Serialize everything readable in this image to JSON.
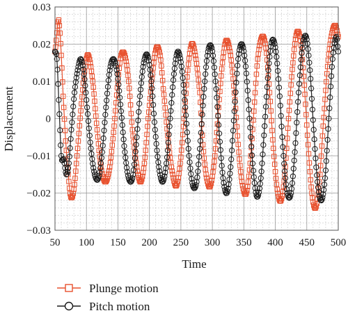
{
  "chart_data": {
    "type": "line",
    "xlabel": "Time",
    "ylabel": "Displacement",
    "xlim": [
      50,
      500
    ],
    "ylim": [
      -0.03,
      0.03
    ],
    "x_ticks": [
      50,
      100,
      150,
      200,
      250,
      300,
      350,
      400,
      450,
      500
    ],
    "x_tick_labels": [
      "50",
      "100",
      "150",
      "200",
      "250",
      "300",
      "350",
      "400",
      "450",
      "500"
    ],
    "y_ticks": [
      -0.03,
      -0.02,
      -0.01,
      0,
      0.01,
      0.02,
      0.03
    ],
    "y_tick_labels": [
      "−0.03",
      "−0.02",
      "−0.01",
      "0",
      "0.01",
      "0.02",
      "0.03"
    ],
    "grid": true,
    "minor_grid": true,
    "legend_position": "bottom-left, below plot",
    "series": [
      {
        "name": "Plunge motion",
        "color": "#e8512e",
        "marker": "square",
        "x": [
          50,
          55,
          57,
          60,
          63,
          67,
          71,
          75,
          80,
          86,
          92,
          98,
          103,
          110,
          117,
          123,
          130,
          137,
          144,
          150,
          155,
          161,
          167,
          173,
          180,
          186,
          192,
          198,
          205,
          211,
          217,
          222,
          230,
          237,
          243,
          249,
          255,
          261,
          267,
          273,
          280,
          285,
          291,
          297,
          304,
          310,
          316,
          322,
          329,
          336,
          342,
          348,
          354,
          360,
          366,
          372,
          379,
          385,
          391,
          397,
          403,
          409,
          415,
          421,
          428,
          434,
          440,
          446,
          452,
          458,
          464,
          470,
          476,
          483,
          490,
          496,
          500
        ],
        "values": [
          0.018,
          0.026,
          0.025,
          0.017,
          0.006,
          -0.006,
          -0.015,
          -0.021,
          -0.019,
          -0.008,
          0.004,
          0.014,
          0.017,
          0.01,
          -0.003,
          -0.013,
          -0.017,
          -0.013,
          -0.002,
          0.01,
          0.017,
          0.017,
          0.01,
          -0.003,
          -0.013,
          -0.017,
          -0.012,
          0.0,
          0.012,
          0.019,
          0.017,
          0.008,
          -0.006,
          -0.015,
          -0.018,
          -0.012,
          0.0,
          0.013,
          0.02,
          0.017,
          0.007,
          -0.007,
          -0.016,
          -0.018,
          -0.01,
          0.003,
          0.015,
          0.021,
          0.017,
          0.005,
          -0.009,
          -0.018,
          -0.02,
          -0.012,
          0.002,
          0.016,
          0.022,
          0.019,
          0.007,
          -0.008,
          -0.019,
          -0.022,
          -0.015,
          0.0,
          0.015,
          0.023,
          0.021,
          0.009,
          -0.007,
          -0.02,
          -0.024,
          -0.017,
          -0.002,
          0.014,
          0.023,
          0.025,
          0.022
        ]
      },
      {
        "name": "Pitch motion",
        "color": "#1a1a1a",
        "marker": "circle",
        "x": [
          50,
          53,
          56,
          60,
          64,
          68,
          72,
          76,
          81,
          86,
          91,
          96,
          101,
          107,
          113,
          119,
          125,
          131,
          137,
          143,
          149,
          155,
          161,
          167,
          173,
          179,
          185,
          191,
          197,
          203,
          209,
          215,
          221,
          227,
          233,
          239,
          245,
          251,
          257,
          263,
          269,
          275,
          281,
          287,
          293,
          299,
          305,
          311,
          317,
          323,
          329,
          335,
          341,
          347,
          353,
          359,
          365,
          371,
          377,
          383,
          389,
          395,
          401,
          407,
          413,
          419,
          425,
          431,
          437,
          443,
          449,
          455,
          461,
          467,
          473,
          479,
          485,
          491,
          497,
          500
        ],
        "values": [
          0.018,
          0.016,
          0.005,
          -0.01,
          -0.011,
          -0.015,
          -0.012,
          -0.003,
          0.007,
          0.013,
          0.016,
          0.012,
          0.003,
          -0.008,
          -0.015,
          -0.016,
          -0.009,
          0.003,
          0.013,
          0.016,
          0.012,
          0.002,
          -0.009,
          -0.016,
          -0.016,
          -0.007,
          0.006,
          0.015,
          0.017,
          0.01,
          -0.003,
          -0.013,
          -0.017,
          -0.012,
          0.0,
          0.012,
          0.018,
          0.014,
          0.003,
          -0.01,
          -0.018,
          -0.017,
          -0.006,
          0.008,
          0.018,
          0.019,
          0.01,
          -0.004,
          -0.016,
          -0.02,
          -0.013,
          0.002,
          0.016,
          0.02,
          0.014,
          0.0,
          -0.014,
          -0.021,
          -0.016,
          -0.002,
          0.013,
          0.021,
          0.018,
          0.006,
          -0.01,
          -0.02,
          -0.02,
          -0.009,
          0.007,
          0.019,
          0.022,
          0.013,
          -0.003,
          -0.017,
          -0.022,
          -0.016,
          0.0,
          0.016,
          0.022,
          0.018
        ]
      }
    ]
  }
}
